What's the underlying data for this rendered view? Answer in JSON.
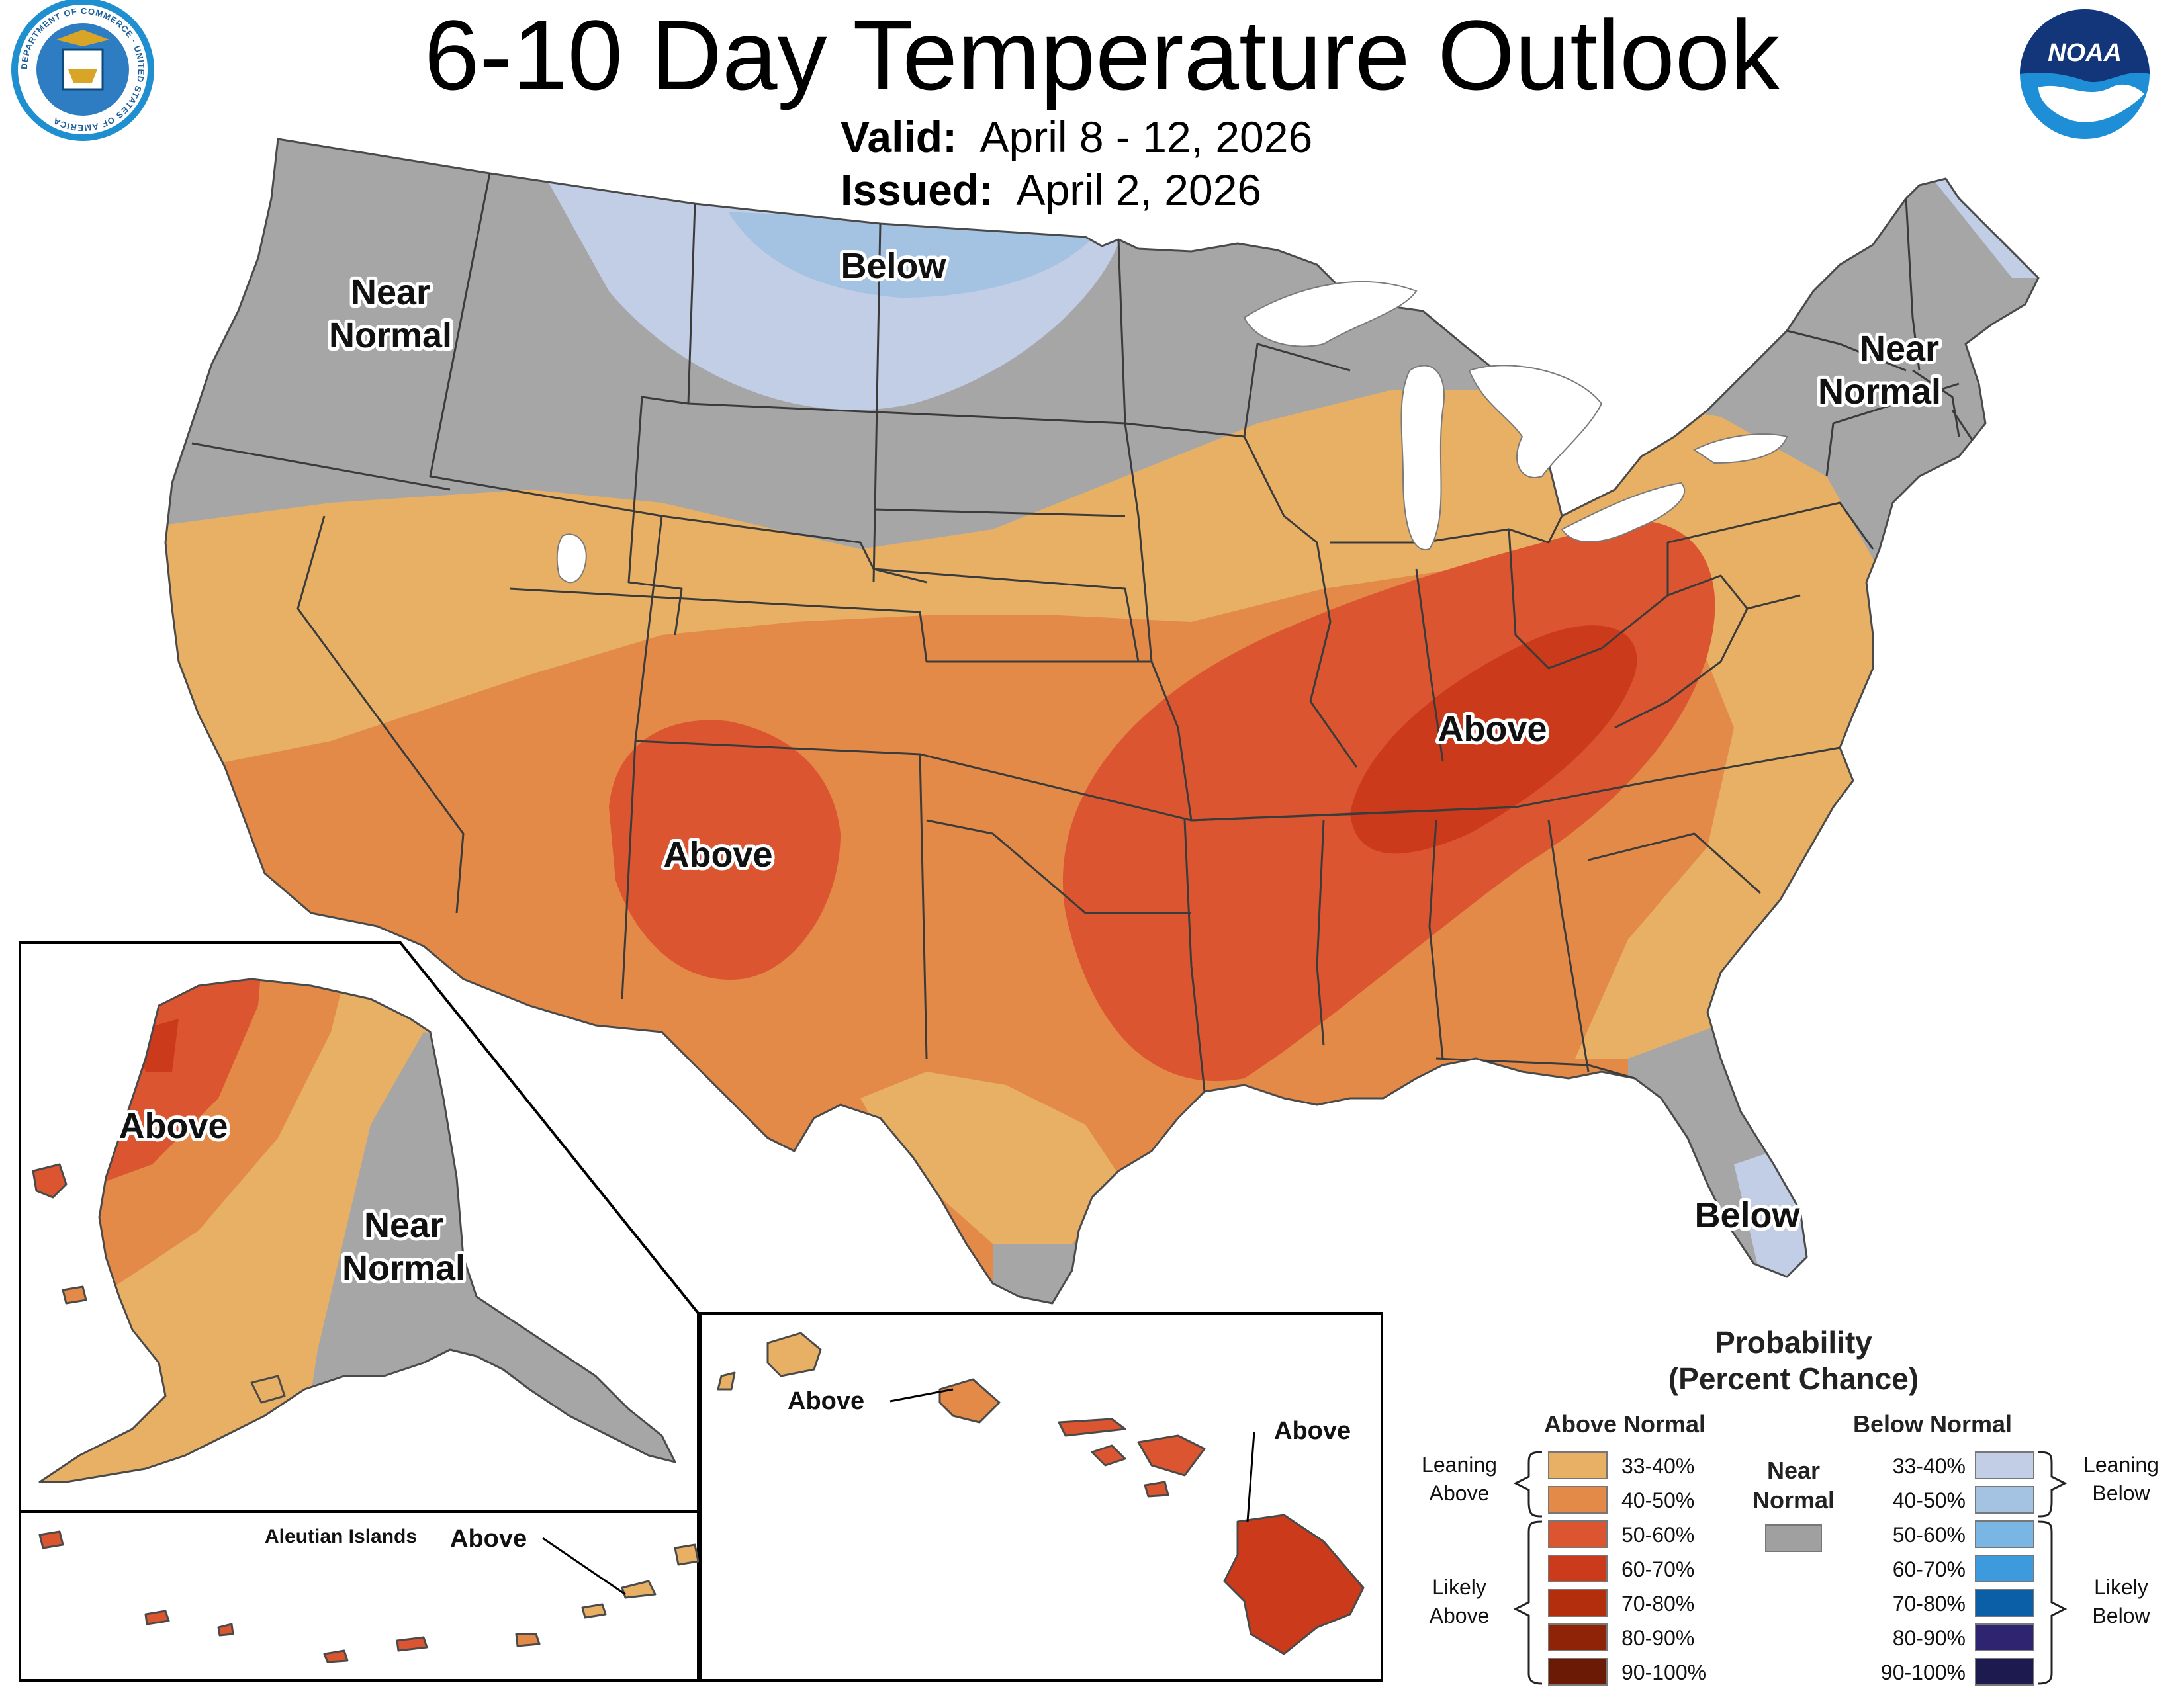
{
  "header": {
    "title": "6-10 Day Temperature Outlook",
    "valid_label": "Valid:",
    "valid_value": "April 8 - 12, 2026",
    "issued_label": "Issued:",
    "issued_value": "April 2, 2026"
  },
  "logos": {
    "left": {
      "icon": "department-of-commerce-seal-icon",
      "text": "DEPARTMENT OF COMMERCE · UNITED STATES OF AMERICA"
    },
    "right": {
      "icon": "noaa-logo-icon",
      "text": "NOAA"
    }
  },
  "map_labels": {
    "northwest": [
      "Near",
      "Normal"
    ],
    "north_central": "Below",
    "northeast": [
      "Near",
      "Normal"
    ],
    "southwest": "Above",
    "ohio_valley": "Above",
    "florida": "Below",
    "alaska_west": "Above",
    "alaska_east": [
      "Near",
      "Normal"
    ],
    "aleutian_title": "Aleutian Islands",
    "aleutian": "Above",
    "hawaii_west": "Above",
    "hawaii_east": "Above"
  },
  "legend": {
    "title_line1": "Probability",
    "title_line2": "(Percent Chance)",
    "above_header": "Above Normal",
    "below_header": "Below Normal",
    "near_header": [
      "Near",
      "Normal"
    ],
    "near_color": "#a0a0a0",
    "above_items": [
      {
        "label": "33-40%",
        "color": "#e8b064"
      },
      {
        "label": "40-50%",
        "color": "#e38a48"
      },
      {
        "label": "50-60%",
        "color": "#db5630"
      },
      {
        "label": "60-70%",
        "color": "#cc3a1c"
      },
      {
        "label": "70-80%",
        "color": "#b32e0c"
      },
      {
        "label": "80-90%",
        "color": "#8e2308"
      },
      {
        "label": "90-100%",
        "color": "#6a1a05"
      }
    ],
    "below_items": [
      {
        "label": "33-40%",
        "color": "#c2cde6"
      },
      {
        "label": "40-50%",
        "color": "#a4c3e2"
      },
      {
        "label": "50-60%",
        "color": "#7ab6e4"
      },
      {
        "label": "60-70%",
        "color": "#3d9adc"
      },
      {
        "label": "70-80%",
        "color": "#0a5fa6"
      },
      {
        "label": "80-90%",
        "color": "#2e2470"
      },
      {
        "label": "90-100%",
        "color": "#1c1a4e"
      }
    ],
    "leaning_above": [
      "Leaning",
      "Above"
    ],
    "likely_above": [
      "Likely",
      "Above"
    ],
    "leaning_below": [
      "Leaning",
      "Below"
    ],
    "likely_below": [
      "Likely",
      "Below"
    ]
  }
}
